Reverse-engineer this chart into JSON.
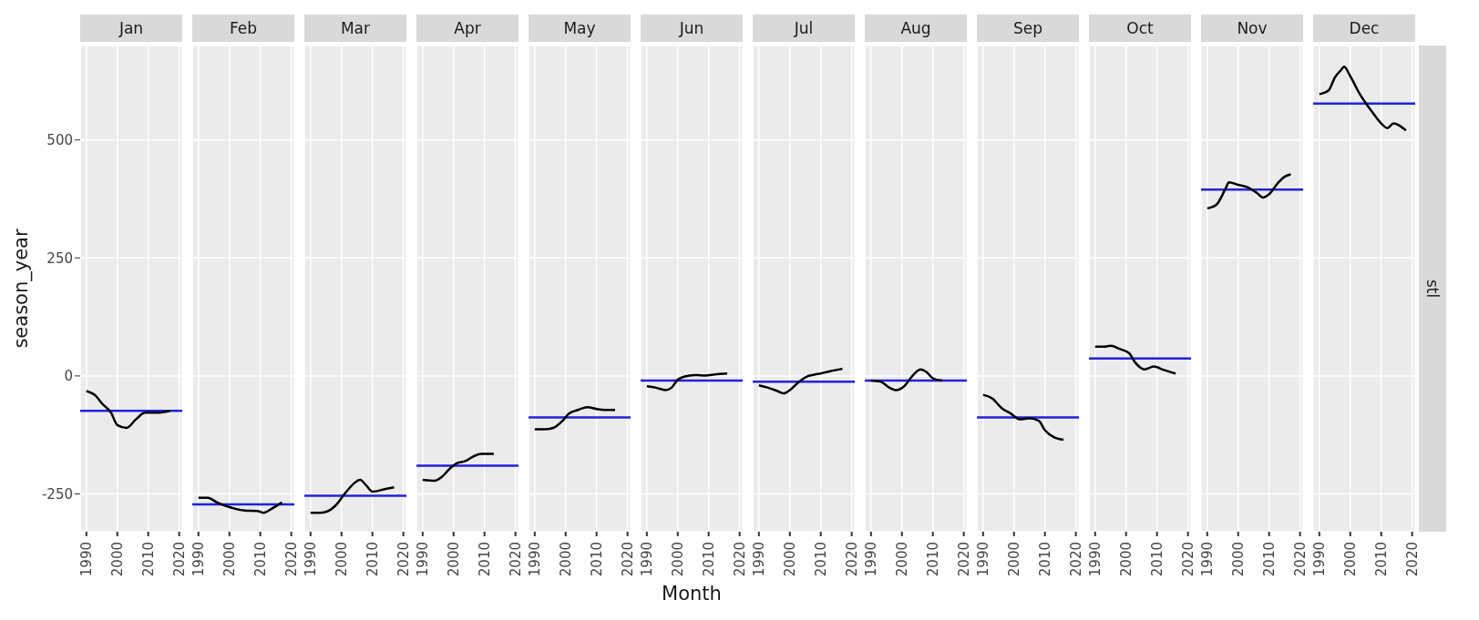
{
  "chart_data": [
    {
      "type": "line",
      "title": "Jan",
      "ylabel": "season_year",
      "x": [
        1990,
        1993,
        1995,
        1998,
        2000,
        2003,
        2006,
        2009,
        2013,
        2017
      ],
      "series": [
        {
          "color": "#000000",
          "values": [
            -32,
            -42,
            -58,
            -78,
            -104,
            -110,
            -92,
            -78,
            -78,
            -74
          ]
        }
      ],
      "ref_lines": [
        {
          "axis": "y",
          "value": -74,
          "color": "#2222dd"
        }
      ],
      "xlim": [
        1988,
        2021
      ],
      "xticks": [
        1990,
        2000,
        2010,
        2020
      ],
      "ylim": [
        -330,
        700
      ],
      "yticks": [
        -250,
        0,
        250,
        500
      ],
      "grid": true
    },
    {
      "type": "line",
      "title": "Feb",
      "x": [
        1990,
        1993,
        1996,
        2000,
        2005,
        2009,
        2011,
        2014,
        2017
      ],
      "series": [
        {
          "color": "#000000",
          "values": [
            -258,
            -258,
            -268,
            -278,
            -285,
            -286,
            -290,
            -280,
            -268
          ]
        }
      ],
      "ref_lines": [
        {
          "axis": "y",
          "value": -272,
          "color": "#2222dd"
        }
      ],
      "xlim": [
        1988,
        2021
      ],
      "xticks": [
        1990,
        2000,
        2010,
        2020
      ],
      "ylim": [
        -330,
        700
      ],
      "yticks": [
        -250,
        0,
        250,
        500
      ],
      "grid": true,
      "tick_labels": "x"
    },
    {
      "type": "line",
      "title": "Mar",
      "x": [
        1990,
        1993,
        1995,
        1998,
        2001,
        2004,
        2006,
        2008,
        2010,
        2014,
        2017
      ],
      "series": [
        {
          "color": "#000000",
          "values": [
            -290,
            -290,
            -288,
            -275,
            -250,
            -228,
            -220,
            -232,
            -245,
            -240,
            -236
          ]
        }
      ],
      "ref_lines": [
        {
          "axis": "y",
          "value": -254,
          "color": "#2222dd"
        }
      ],
      "xlim": [
        1988,
        2021
      ],
      "xticks": [
        1990,
        2000,
        2010,
        2020
      ],
      "ylim": [
        -330,
        700
      ],
      "yticks": [
        -250,
        0,
        250,
        500
      ],
      "grid": true,
      "tick_labels": "x"
    },
    {
      "type": "line",
      "title": "Apr",
      "x": [
        1990,
        1994,
        1996,
        1999,
        2001,
        2004,
        2006,
        2009,
        2013
      ],
      "series": [
        {
          "color": "#000000",
          "values": [
            -220,
            -222,
            -215,
            -195,
            -185,
            -180,
            -172,
            -165,
            -165
          ]
        }
      ],
      "ref_lines": [
        {
          "axis": "y",
          "value": -190,
          "color": "#2222dd"
        }
      ],
      "xlim": [
        1988,
        2021
      ],
      "xticks": [
        1990,
        2000,
        2010,
        2020
      ],
      "ylim": [
        -330,
        700
      ],
      "yticks": [
        -250,
        0,
        250,
        500
      ],
      "grid": true,
      "tick_labels": "x"
    },
    {
      "type": "line",
      "title": "May",
      "x": [
        1990,
        1993,
        1996,
        1999,
        2001,
        2004,
        2007,
        2010,
        2013,
        2016
      ],
      "series": [
        {
          "color": "#000000",
          "values": [
            -113,
            -113,
            -110,
            -95,
            -80,
            -72,
            -66,
            -70,
            -72,
            -72
          ]
        }
      ],
      "ref_lines": [
        {
          "axis": "y",
          "value": -88,
          "color": "#2222dd"
        }
      ],
      "xlim": [
        1988,
        2021
      ],
      "xticks": [
        1990,
        2000,
        2010,
        2020
      ],
      "ylim": [
        -330,
        700
      ],
      "yticks": [
        -250,
        0,
        250,
        500
      ],
      "grid": true,
      "tick_labels": "x"
    },
    {
      "type": "line",
      "title": "Jun",
      "xlabel": "Month",
      "x": [
        1990,
        1993,
        1996,
        1998,
        2000,
        2003,
        2006,
        2009,
        2012,
        2016
      ],
      "series": [
        {
          "color": "#000000",
          "values": [
            -22,
            -25,
            -30,
            -25,
            -8,
            0,
            2,
            1,
            3,
            5
          ]
        }
      ],
      "ref_lines": [
        {
          "axis": "y",
          "value": -10,
          "color": "#2222dd"
        }
      ],
      "xlim": [
        1988,
        2021
      ],
      "xticks": [
        1990,
        2000,
        2010,
        2020
      ],
      "ylim": [
        -330,
        700
      ],
      "yticks": [
        -250,
        0,
        250,
        500
      ],
      "grid": true,
      "tick_labels": "x"
    },
    {
      "type": "line",
      "title": "Jul",
      "x": [
        1990,
        1993,
        1996,
        1998,
        2000,
        2003,
        2006,
        2009,
        2013,
        2017
      ],
      "series": [
        {
          "color": "#000000",
          "values": [
            -20,
            -25,
            -32,
            -37,
            -30,
            -12,
            0,
            4,
            10,
            15
          ]
        }
      ],
      "ref_lines": [
        {
          "axis": "y",
          "value": -12,
          "color": "#2222dd"
        }
      ],
      "xlim": [
        1988,
        2021
      ],
      "xticks": [
        1990,
        2000,
        2010,
        2020
      ],
      "ylim": [
        -330,
        700
      ],
      "yticks": [
        -250,
        0,
        250,
        500
      ],
      "grid": true,
      "tick_labels": "x"
    },
    {
      "type": "line",
      "title": "Aug",
      "x": [
        1990,
        1993,
        1996,
        1998,
        2001,
        2003,
        2006,
        2008,
        2010,
        2013
      ],
      "series": [
        {
          "color": "#000000",
          "values": [
            -10,
            -12,
            -25,
            -30,
            -20,
            -3,
            14,
            8,
            -5,
            -10
          ]
        }
      ],
      "ref_lines": [
        {
          "axis": "y",
          "value": -10,
          "color": "#2222dd"
        }
      ],
      "xlim": [
        1988,
        2021
      ],
      "xticks": [
        1990,
        2000,
        2010,
        2020
      ],
      "ylim": [
        -330,
        700
      ],
      "yticks": [
        -250,
        0,
        250,
        500
      ],
      "grid": true,
      "tick_labels": "x"
    },
    {
      "type": "line",
      "title": "Sep",
      "x": [
        1990,
        1993,
        1996,
        1999,
        2002,
        2005,
        2008,
        2010,
        2013,
        2016
      ],
      "series": [
        {
          "color": "#000000",
          "values": [
            -40,
            -48,
            -68,
            -80,
            -92,
            -90,
            -95,
            -115,
            -130,
            -135
          ]
        }
      ],
      "ref_lines": [
        {
          "axis": "y",
          "value": -88,
          "color": "#2222dd"
        }
      ],
      "xlim": [
        1988,
        2021
      ],
      "xticks": [
        1990,
        2000,
        2010,
        2020
      ],
      "ylim": [
        -330,
        700
      ],
      "yticks": [
        -250,
        0,
        250,
        500
      ],
      "grid": true,
      "tick_labels": "x"
    },
    {
      "type": "line",
      "title": "Oct",
      "x": [
        1990,
        1993,
        1995,
        1998,
        2001,
        2003,
        2006,
        2009,
        2012,
        2016
      ],
      "series": [
        {
          "color": "#000000",
          "values": [
            62,
            62,
            64,
            57,
            48,
            28,
            14,
            20,
            13,
            5
          ]
        }
      ],
      "ref_lines": [
        {
          "axis": "y",
          "value": 37,
          "color": "#2222dd"
        }
      ],
      "xlim": [
        1988,
        2021
      ],
      "xticks": [
        1990,
        2000,
        2010,
        2020
      ],
      "ylim": [
        -330,
        700
      ],
      "yticks": [
        -250,
        0,
        250,
        500
      ],
      "grid": true,
      "tick_labels": "x"
    },
    {
      "type": "line",
      "title": "Nov",
      "x": [
        1990,
        1993,
        1996,
        1997,
        2000,
        2003,
        2006,
        2008,
        2010,
        2013,
        2015,
        2017
      ],
      "series": [
        {
          "color": "#000000",
          "values": [
            355,
            363,
            398,
            410,
            405,
            400,
            388,
            378,
            385,
            410,
            422,
            427
          ]
        }
      ],
      "ref_lines": [
        {
          "axis": "y",
          "value": 395,
          "color": "#2222dd"
        }
      ],
      "xlim": [
        1988,
        2021
      ],
      "xticks": [
        1990,
        2000,
        2010,
        2020
      ],
      "ylim": [
        -330,
        700
      ],
      "yticks": [
        -250,
        0,
        250,
        500
      ],
      "grid": true,
      "tick_labels": "x"
    },
    {
      "type": "line",
      "title": "Dec",
      "annotations": [
        "stl"
      ],
      "x": [
        1990,
        1993,
        1995,
        1997,
        1998,
        2000,
        2003,
        2005,
        2007,
        2010,
        2012,
        2014,
        2016,
        2018
      ],
      "series": [
        {
          "color": "#000000",
          "values": [
            597,
            605,
            632,
            648,
            655,
            635,
            598,
            578,
            560,
            535,
            525,
            535,
            530,
            520
          ]
        }
      ],
      "ref_lines": [
        {
          "axis": "y",
          "value": 577,
          "color": "#2222dd"
        }
      ],
      "xlim": [
        1988,
        2021
      ],
      "xticks": [
        1990,
        2000,
        2010,
        2020
      ],
      "ylim": [
        -330,
        700
      ],
      "yticks": [
        -250,
        0,
        250,
        500
      ],
      "grid": true,
      "tick_labels": "x"
    }
  ]
}
